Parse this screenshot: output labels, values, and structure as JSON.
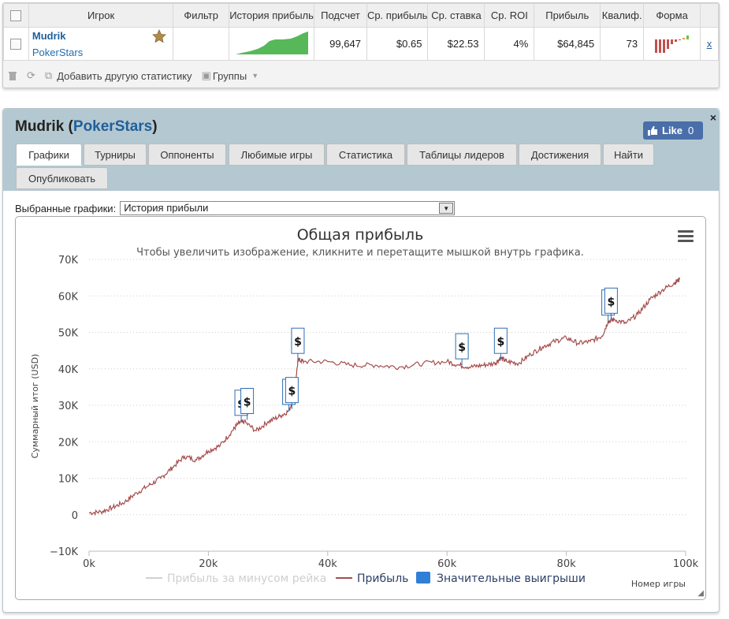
{
  "stats_table": {
    "headers": [
      "Игрок",
      "Фильтр",
      "История прибыль",
      "Подсчет",
      "Ср. прибыль",
      "Ср. ставка",
      "Ср. ROI",
      "Прибыль",
      "Квалиф.",
      "Форма"
    ],
    "row": {
      "player": "Mudrik",
      "site": "PokerStars",
      "filter": "",
      "count": "99,647",
      "avg_profit": "$0.65",
      "avg_stake": "$22.53",
      "avg_roi": "4%",
      "profit": "$64,845",
      "qualif": "73",
      "remove": "x"
    }
  },
  "toolbar": {
    "add_stat": "Добавить другую статистику",
    "groups": "Группы"
  },
  "panel": {
    "title_player": "Mudrik",
    "title_open": " (",
    "title_site": "PokerStars",
    "title_close": ")",
    "like_label": "Like",
    "like_count": "0",
    "close": "×",
    "tabs": [
      "Графики",
      "Турниры",
      "Оппоненты",
      "Любимые игры",
      "Статистика",
      "Таблицы лидеров",
      "Достижения",
      "Найти",
      "Опубликовать"
    ],
    "selector_label": "Выбранные графики:",
    "selector_value": "История прибыли"
  },
  "colors": {
    "line": "#a64d4d",
    "flag_border": "#2f6db5",
    "legend_blue": "#2f7fd6"
  },
  "chart_data": {
    "type": "line",
    "title": "Общая прибыль",
    "subtitle": "Чтобы увеличить изображение, кликните и перетащите мышкой внутрь графика.",
    "xlabel": "Номер игры",
    "ylabel": "Суммарный итог (USD)",
    "xlim": [
      0,
      100000
    ],
    "ylim": [
      -10000,
      70000
    ],
    "x_ticks": [
      "0k",
      "20k",
      "40k",
      "60k",
      "80k",
      "100k"
    ],
    "y_ticks": [
      "−10K",
      "0",
      "10K",
      "20K",
      "30K",
      "40K",
      "50K",
      "60K",
      "70K"
    ],
    "legend": [
      "Прибыль за минусом рейка",
      "Прибыль",
      "Значительные выигрыши"
    ],
    "series": [
      {
        "name": "Прибыль",
        "x": [
          0,
          2000,
          4000,
          6000,
          8000,
          10000,
          12000,
          14000,
          16000,
          18000,
          20000,
          22000,
          24000,
          25000,
          26000,
          28000,
          30000,
          32000,
          33500,
          34500,
          35000,
          36000,
          40000,
          44000,
          48000,
          52000,
          56000,
          60000,
          62000,
          64000,
          66000,
          68000,
          69000,
          70000,
          72000,
          74000,
          76000,
          78000,
          80000,
          82000,
          84000,
          86000,
          87000,
          88000,
          90000,
          92000,
          94000,
          96000,
          98000,
          99000
        ],
        "values": [
          500,
          800,
          2000,
          3500,
          6000,
          8000,
          10000,
          13000,
          16000,
          15000,
          17500,
          19000,
          23000,
          25000,
          25500,
          23000,
          25500,
          27000,
          28500,
          33000,
          42500,
          42000,
          42000,
          41000,
          41000,
          40500,
          41500,
          42000,
          41000,
          40500,
          41000,
          41500,
          43000,
          42000,
          41500,
          44000,
          46000,
          47500,
          48500,
          47000,
          47500,
          49000,
          53000,
          53500,
          52500,
          55000,
          59000,
          61500,
          63500,
          64500
        ]
      }
    ],
    "big_wins": [
      {
        "x": 25500,
        "y": 25500
      },
      {
        "x": 26500,
        "y": 26000
      },
      {
        "x": 33500,
        "y": 28500
      },
      {
        "x": 34000,
        "y": 29000
      },
      {
        "x": 35000,
        "y": 42500
      },
      {
        "x": 62500,
        "y": 41000
      },
      {
        "x": 69000,
        "y": 42500
      },
      {
        "x": 87000,
        "y": 53000
      },
      {
        "x": 87500,
        "y": 53500
      }
    ],
    "big_win_label": "$",
    "grid": true
  }
}
